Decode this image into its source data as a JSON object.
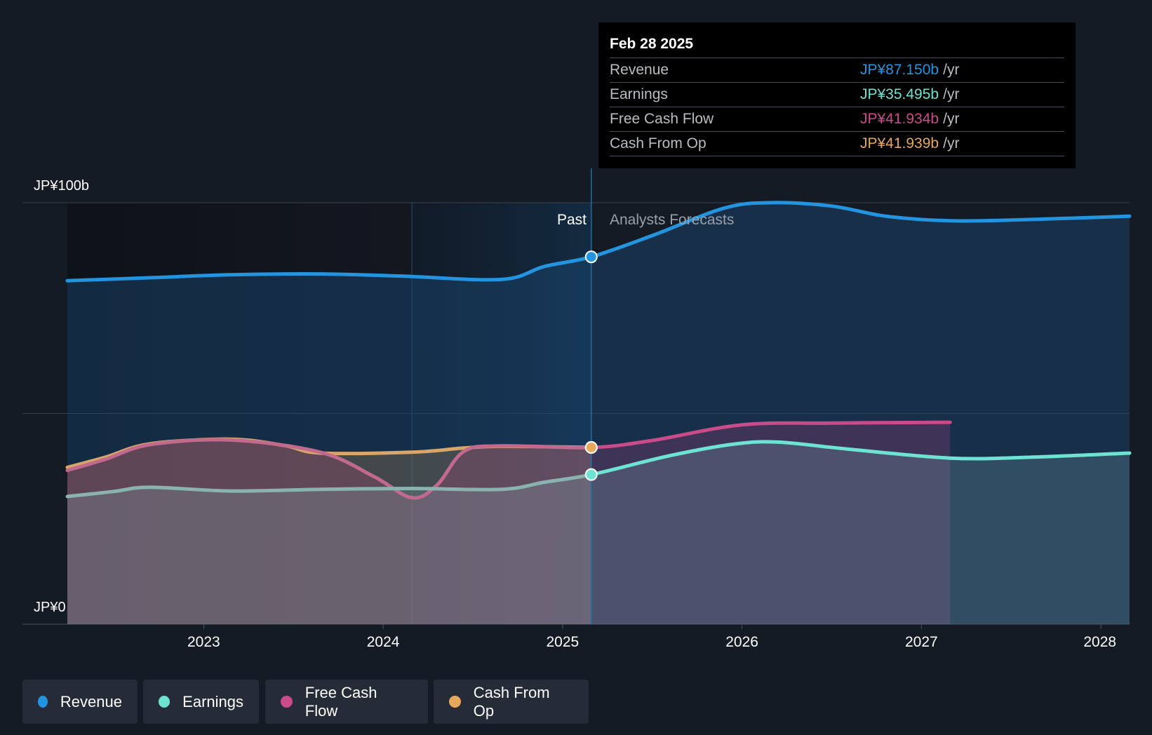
{
  "colors": {
    "background": "#151b25",
    "revenue": "#2394df",
    "earnings": "#6fe3d1",
    "free_cash_flow": "#c94b8a",
    "cash_from_op": "#e6a85c",
    "past_band": "#123a5c",
    "grid": "#3a414c"
  },
  "tooltip": {
    "date": "Feb 28 2025",
    "rows": [
      {
        "label": "Revenue",
        "value": "JP¥87.150b",
        "unit": "/yr",
        "color": "#2394df"
      },
      {
        "label": "Earnings",
        "value": "JP¥35.495b",
        "unit": "/yr",
        "color": "#6fe3d1"
      },
      {
        "label": "Free Cash Flow",
        "value": "JP¥41.934b",
        "unit": "/yr",
        "color": "#c94b8a"
      },
      {
        "label": "Cash From Op",
        "value": "JP¥41.939b",
        "unit": "/yr",
        "color": "#e6a85c"
      }
    ]
  },
  "legend": [
    {
      "label": "Revenue",
      "color": "#2394df"
    },
    {
      "label": "Earnings",
      "color": "#6fe3d1"
    },
    {
      "label": "Free Cash Flow",
      "color": "#c94b8a"
    },
    {
      "label": "Cash From Op",
      "color": "#e6a85c"
    }
  ],
  "chart_data": {
    "type": "line",
    "title": "",
    "currency": "JPY",
    "unit": "JP¥ billions",
    "y_axis_labels": [
      "JP¥100b",
      "JP¥0"
    ],
    "ylim": [
      0,
      100
    ],
    "xlim": [
      2022.24,
      2028.16
    ],
    "x_ticks": [
      2023,
      2024,
      2025,
      2026,
      2027,
      2028
    ],
    "x_tick_labels": [
      "2023",
      "2024",
      "2025",
      "2026",
      "2027",
      "2028"
    ],
    "divider_x": 2025.16,
    "highlight_band_x": [
      2024.16,
      2025.16
    ],
    "past_label": "Past",
    "forecast_label": "Analysts Forecasts",
    "series": [
      {
        "name": "Revenue",
        "key": "revenue",
        "points": [
          [
            2022.24,
            81.5
          ],
          [
            2022.7,
            82.2
          ],
          [
            2023.15,
            82.9
          ],
          [
            2023.65,
            83.1
          ],
          [
            2024.1,
            82.6
          ],
          [
            2024.66,
            81.8
          ],
          [
            2024.9,
            84.9
          ],
          [
            2025.16,
            87.15
          ],
          [
            2025.5,
            92.2
          ],
          [
            2025.9,
            98.7
          ],
          [
            2026.16,
            100.0
          ],
          [
            2026.5,
            99.2
          ],
          [
            2026.8,
            96.8
          ],
          [
            2027.16,
            95.7
          ],
          [
            2027.6,
            96.0
          ],
          [
            2028.16,
            96.8
          ]
        ]
      },
      {
        "name": "Earnings",
        "key": "earnings",
        "points": [
          [
            2022.24,
            30.3
          ],
          [
            2022.5,
            31.5
          ],
          [
            2022.7,
            32.5
          ],
          [
            2023.15,
            31.6
          ],
          [
            2023.65,
            32.0
          ],
          [
            2024.16,
            32.2
          ],
          [
            2024.66,
            32.0
          ],
          [
            2024.9,
            33.7
          ],
          [
            2025.16,
            35.495
          ],
          [
            2025.6,
            40.0
          ],
          [
            2025.95,
            42.7
          ],
          [
            2026.2,
            43.2
          ],
          [
            2026.6,
            41.5
          ],
          [
            2027.16,
            39.4
          ],
          [
            2027.6,
            39.6
          ],
          [
            2028.16,
            40.6
          ]
        ]
      },
      {
        "name": "Free Cash Flow",
        "key": "free_cash_flow",
        "points": [
          [
            2022.24,
            36.5
          ],
          [
            2022.45,
            39.1
          ],
          [
            2022.7,
            42.6
          ],
          [
            2023.15,
            43.7
          ],
          [
            2023.65,
            40.8
          ],
          [
            2023.95,
            35.0
          ],
          [
            2024.16,
            30.0
          ],
          [
            2024.3,
            33.0
          ],
          [
            2024.45,
            41.0
          ],
          [
            2024.66,
            42.3
          ],
          [
            2025.16,
            41.934
          ],
          [
            2025.5,
            43.6
          ],
          [
            2026.0,
            47.3
          ],
          [
            2026.5,
            47.7
          ],
          [
            2027.16,
            47.9
          ]
        ]
      },
      {
        "name": "Cash From Op",
        "key": "cash_from_op",
        "points": [
          [
            2022.24,
            37.2
          ],
          [
            2022.45,
            39.6
          ],
          [
            2022.7,
            42.8
          ],
          [
            2023.15,
            43.9
          ],
          [
            2023.45,
            42.4
          ],
          [
            2023.65,
            40.6
          ],
          [
            2024.16,
            40.8
          ],
          [
            2024.45,
            41.8
          ],
          [
            2024.66,
            42.2
          ],
          [
            2025.16,
            41.939
          ]
        ]
      }
    ]
  }
}
